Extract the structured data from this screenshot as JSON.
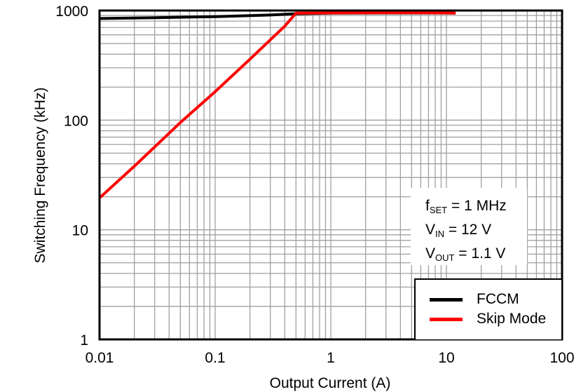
{
  "chart_data": {
    "type": "line",
    "title": "",
    "xlabel": "Output Current (A)",
    "ylabel": "Switching Frequency (kHz)",
    "xscale": "log",
    "yscale": "log",
    "xlim": [
      0.01,
      100
    ],
    "ylim": [
      1,
      1000
    ],
    "xticks": [
      "0.01",
      "0.1",
      "1",
      "10",
      "100"
    ],
    "yticks": [
      "1",
      "10",
      "100",
      "1000"
    ],
    "grid": true,
    "legend_position": "lower right",
    "series": [
      {
        "name": "FCCM",
        "color": "#000000",
        "x": [
          0.01,
          0.03,
          0.1,
          0.3,
          0.5,
          1,
          3,
          5,
          10,
          12
        ],
        "y": [
          845,
          860,
          880,
          910,
          935,
          945,
          950,
          950,
          948,
          945
        ]
      },
      {
        "name": "Skip Mode",
        "color": "#ff0000",
        "x": [
          0.01,
          0.02,
          0.05,
          0.1,
          0.2,
          0.3,
          0.4,
          0.5,
          1,
          3,
          5,
          10,
          12
        ],
        "y": [
          19.5,
          38,
          95,
          182,
          360,
          540,
          720,
          945,
          950,
          955,
          955,
          950,
          945
        ]
      }
    ],
    "annotations": [
      {
        "text": "fSET = 1 MHz",
        "main": "f",
        "sub": "SET",
        "rest": " = 1 MHz"
      },
      {
        "text": "VIN = 12 V",
        "main": "V",
        "sub": "IN",
        "rest": " = 12 V"
      },
      {
        "text": "VOUT = 1.1 V",
        "main": "V",
        "sub": "OUT",
        "rest": " = 1.1 V"
      }
    ]
  },
  "legend": {
    "items": [
      {
        "label": "FCCM",
        "color": "#000000"
      },
      {
        "label": "Skip Mode",
        "color": "#ff0000"
      }
    ]
  }
}
